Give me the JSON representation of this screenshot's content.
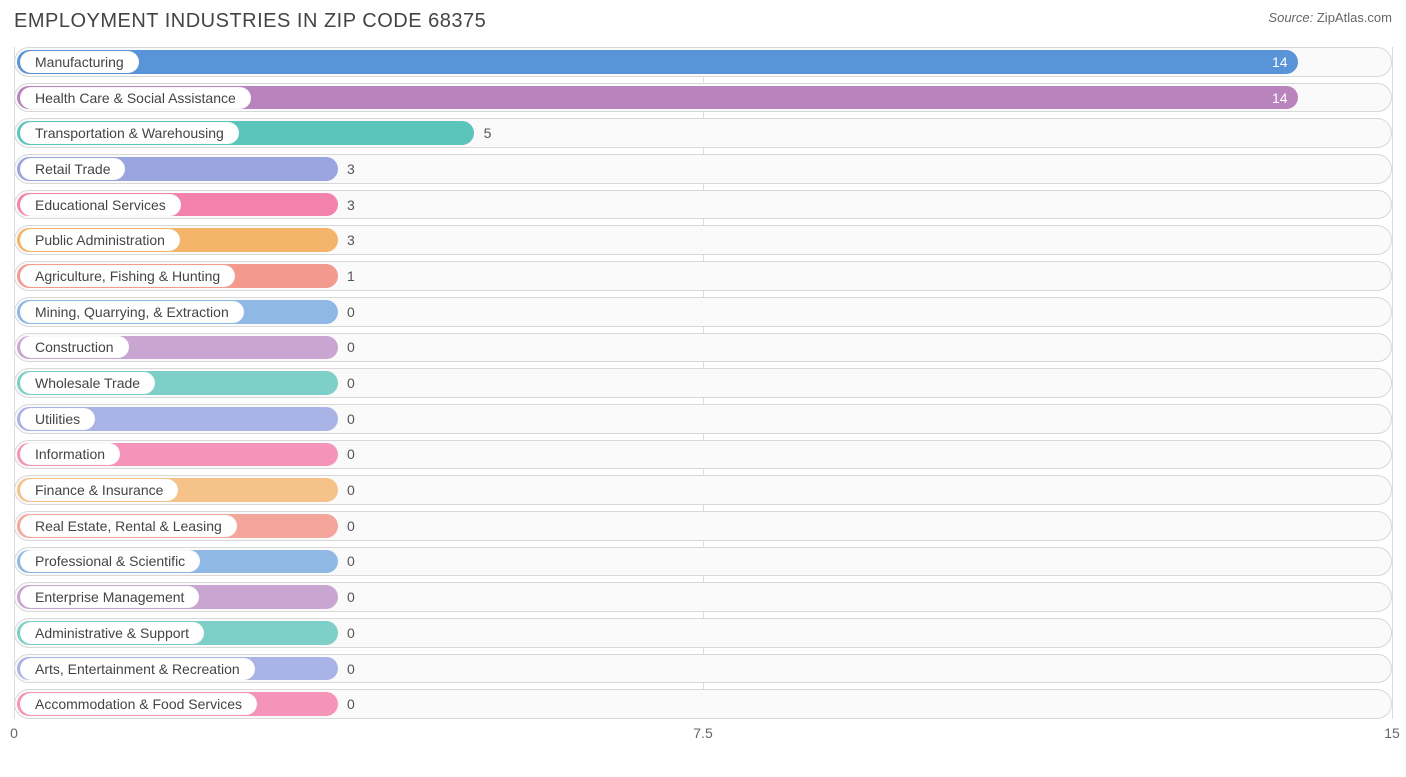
{
  "header": {
    "title": "EMPLOYMENT INDUSTRIES IN ZIP CODE 68375",
    "source_label": "Source:",
    "source_value": "ZipAtlas.com"
  },
  "chart": {
    "type": "bar-horizontal",
    "background_color": "#ffffff",
    "track_background": "#fafafa",
    "track_border_color": "#d8d8d8",
    "grid_color": "#dcdcdc",
    "label_fontsize": 14,
    "title_fontsize": 20,
    "value_fontsize": 14,
    "xlim": [
      0,
      15
    ],
    "x_ticks": [
      0,
      7.5,
      15
    ],
    "min_bar_pct": 23.4,
    "categories": [
      {
        "label": "Manufacturing",
        "value": 14,
        "color": "#5a94d8",
        "value_inside": true
      },
      {
        "label": "Health Care & Social Assistance",
        "value": 14,
        "color": "#b983bd",
        "value_inside": true
      },
      {
        "label": "Transportation & Warehousing",
        "value": 5,
        "color": "#5bc4bb",
        "value_inside": false
      },
      {
        "label": "Retail Trade",
        "value": 3,
        "color": "#9aa5e0",
        "value_inside": false
      },
      {
        "label": "Educational Services",
        "value": 3,
        "color": "#f282ac",
        "value_inside": false
      },
      {
        "label": "Public Administration",
        "value": 3,
        "color": "#f4b56a",
        "value_inside": false
      },
      {
        "label": "Agriculture, Fishing & Hunting",
        "value": 1,
        "color": "#f39a8f",
        "value_inside": false
      },
      {
        "label": "Mining, Quarrying, & Extraction",
        "value": 0,
        "color": "#8fb8e4",
        "value_inside": false
      },
      {
        "label": "Construction",
        "value": 0,
        "color": "#c9a6d1",
        "value_inside": false
      },
      {
        "label": "Wholesale Trade",
        "value": 0,
        "color": "#7dcfc7",
        "value_inside": false
      },
      {
        "label": "Utilities",
        "value": 0,
        "color": "#aab3e6",
        "value_inside": false
      },
      {
        "label": "Information",
        "value": 0,
        "color": "#f494b8",
        "value_inside": false
      },
      {
        "label": "Finance & Insurance",
        "value": 0,
        "color": "#f5c28a",
        "value_inside": false
      },
      {
        "label": "Real Estate, Rental & Leasing",
        "value": 0,
        "color": "#f4a69c",
        "value_inside": false
      },
      {
        "label": "Professional & Scientific",
        "value": 0,
        "color": "#8fb8e4",
        "value_inside": false
      },
      {
        "label": "Enterprise Management",
        "value": 0,
        "color": "#c9a6d1",
        "value_inside": false
      },
      {
        "label": "Administrative & Support",
        "value": 0,
        "color": "#7dcfc7",
        "value_inside": false
      },
      {
        "label": "Arts, Entertainment & Recreation",
        "value": 0,
        "color": "#aab3e6",
        "value_inside": false
      },
      {
        "label": "Accommodation & Food Services",
        "value": 0,
        "color": "#f494b8",
        "value_inside": false
      }
    ]
  }
}
